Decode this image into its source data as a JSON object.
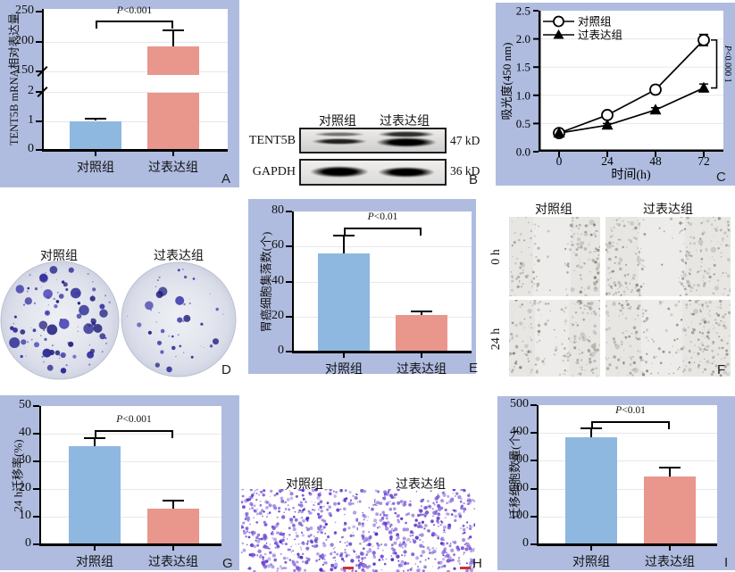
{
  "colors": {
    "panel_bg": "#afbcdf",
    "bar_blue": "#8fb8e0",
    "bar_salmon": "#e9968c",
    "axis": "#000000",
    "gridline": "#e8e8e8",
    "colony_purple": "#38349e",
    "transwell_purple": "#7450d2",
    "scale_bar_red": "#cc3333"
  },
  "chart_data": [
    {
      "id": "A",
      "panel_label": "A",
      "type": "bar",
      "ylabel": "TENT5B mRNA相对表达量",
      "categories": [
        "对照组",
        "过表达组"
      ],
      "values": [
        1,
        192
      ],
      "errors_plus": [
        0.12,
        28
      ],
      "pvalue": "P<0.001",
      "broken_axis": true,
      "yticks_lower": [
        0,
        1,
        2
      ],
      "yticks_upper": [
        150,
        200,
        250
      ],
      "ylim": [
        0,
        250
      ]
    },
    {
      "id": "C",
      "panel_label": "C",
      "type": "line",
      "xlabel": "时间(h)",
      "ylabel": "吸光度(450 nm)",
      "x": [
        0,
        24,
        48,
        72
      ],
      "xticks": [
        "0",
        "24",
        "48",
        "72"
      ],
      "yticks": [
        "0.0",
        "0.5",
        "1.0",
        "1.5",
        "2.0",
        "2.5"
      ],
      "ylim": [
        0,
        2.5
      ],
      "pvalue": "P<0.000 1",
      "legend_position": "top-left",
      "series": [
        {
          "name": "对照组",
          "marker": "open-circle",
          "values": [
            0.33,
            0.65,
            1.1,
            1.98
          ],
          "errors": [
            0.03,
            0.04,
            0.07,
            0.1
          ]
        },
        {
          "name": "过表达组",
          "marker": "filled-triangle",
          "values": [
            0.33,
            0.47,
            0.74,
            1.13
          ],
          "errors": [
            0.02,
            0.03,
            0.04,
            0.07
          ]
        }
      ]
    },
    {
      "id": "E",
      "panel_label": "E",
      "type": "bar",
      "ylabel": "胃癌细胞集落数(个)",
      "categories": [
        "对照组",
        "过表达组"
      ],
      "values": [
        56,
        21
      ],
      "errors_plus": [
        11,
        2.5
      ],
      "pvalue": "P<0.01",
      "yticks": [
        0,
        20,
        40,
        60,
        80
      ],
      "ylim": [
        0,
        80
      ]
    },
    {
      "id": "G",
      "panel_label": "G",
      "type": "bar",
      "ylabel": "24 h迁移率(%)",
      "categories": [
        "对照组",
        "过表达组"
      ],
      "values": [
        35.5,
        13
      ],
      "errors_plus": [
        3.2,
        3
      ],
      "pvalue": "P<0.001",
      "yticks": [
        0,
        10,
        20,
        30,
        40,
        50
      ],
      "ylim": [
        0,
        50
      ]
    },
    {
      "id": "I",
      "panel_label": "I",
      "type": "bar",
      "ylabel": "迁移细胞数量(个)",
      "categories": [
        "对照组",
        "过表达组"
      ],
      "values": [
        385,
        245
      ],
      "errors_plus": [
        35,
        35
      ],
      "pvalue": "P<0.01",
      "yticks": [
        0,
        100,
        200,
        300,
        400,
        500
      ],
      "ylim": [
        0,
        500
      ]
    }
  ],
  "panels": {
    "B": {
      "label": "B",
      "lanes": [
        "对照组",
        "过表达组"
      ],
      "blots": [
        {
          "protein": "TENT5B",
          "mw": "47 kD"
        },
        {
          "protein": "GAPDH",
          "mw": "36 kD"
        }
      ]
    },
    "D": {
      "label": "D",
      "groups": [
        "对照组",
        "过表达组"
      ]
    },
    "F": {
      "label": "F",
      "columns": [
        "对照组",
        "过表达组"
      ],
      "rows": [
        "0 h",
        "24 h"
      ]
    },
    "H": {
      "label": "H",
      "groups": [
        "对照组",
        "过表达组"
      ]
    }
  }
}
